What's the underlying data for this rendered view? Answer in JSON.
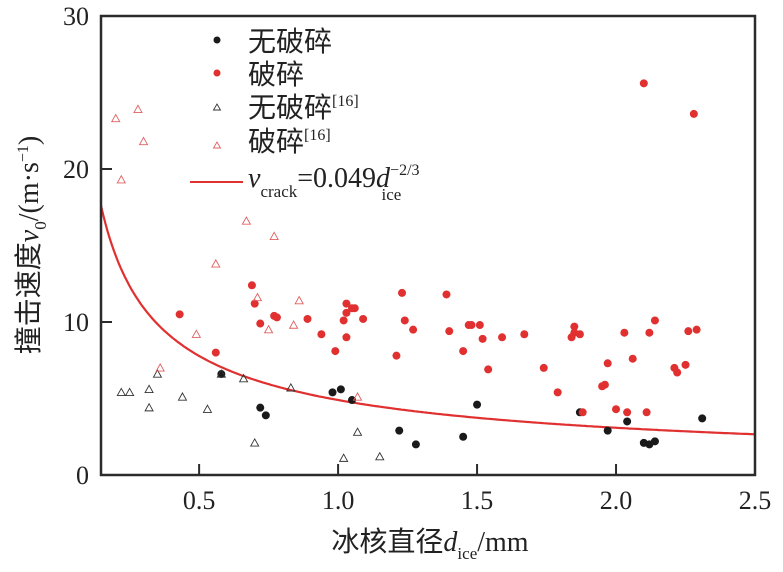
{
  "chart_data": {
    "type": "scatter",
    "title": "",
    "xlabel": {
      "main": "冰核直径",
      "var": "d",
      "sub": "ice",
      "unit": "/mm"
    },
    "ylabel": {
      "main": "撞击速度",
      "var": "v",
      "sub": "0",
      "unit": "/(m·s",
      "exp": "−1",
      "close": ")"
    },
    "xlim": [
      0.147,
      2.5
    ],
    "ylim": [
      0,
      30
    ],
    "xticks": [
      "0.5",
      "1.0",
      "1.5",
      "2.0",
      "2.5"
    ],
    "xtick_values": [
      0.5,
      1.0,
      1.5,
      2.0,
      2.5
    ],
    "yticks": [
      "0",
      "10",
      "20",
      "30"
    ],
    "ytick_values": [
      0,
      10,
      20,
      30
    ],
    "grid": false,
    "legend_position": "top-center",
    "legend": [
      {
        "label": "无破碎",
        "sup": "",
        "marker": "filled-circle",
        "color": "#1a1a1a"
      },
      {
        "label": "破碎",
        "sup": "",
        "marker": "filled-circle",
        "color": "#e03030"
      },
      {
        "label": "无破碎",
        "sup": "[16]",
        "marker": "open-triangle",
        "color": "#333333"
      },
      {
        "label": "破碎",
        "sup": "[16]",
        "marker": "open-triangle",
        "color": "#e06060"
      },
      {
        "label_var": "v",
        "label_sub": "crack",
        "label_eq": "=0.049",
        "label_var2": "d",
        "label_exp": "−2/3",
        "label_sub2": "ice",
        "marker": "line",
        "color": "#e03030"
      }
    ],
    "curve": {
      "name": "v_crack = 0.049 d_ice^(-2/3)",
      "coef": 0.049,
      "exponent": -0.6667,
      "x_unit_scale": 0.001,
      "color": "#e03030"
    },
    "series": [
      {
        "name": "无破碎",
        "marker": "filled-circle",
        "color": "#1a1a1a",
        "points": [
          [
            0.58,
            6.6
          ],
          [
            0.72,
            4.4
          ],
          [
            0.74,
            3.9
          ],
          [
            0.98,
            5.4
          ],
          [
            1.01,
            5.6
          ],
          [
            1.05,
            4.9
          ],
          [
            1.22,
            2.9
          ],
          [
            1.28,
            2.0
          ],
          [
            1.45,
            2.5
          ],
          [
            1.5,
            4.6
          ],
          [
            1.87,
            4.1
          ],
          [
            1.97,
            2.9
          ],
          [
            2.04,
            3.5
          ],
          [
            2.1,
            2.1
          ],
          [
            2.12,
            2.0
          ],
          [
            2.14,
            2.2
          ],
          [
            2.31,
            3.7
          ]
        ]
      },
      {
        "name": "破碎",
        "marker": "filled-circle",
        "color": "#e03030",
        "points": [
          [
            0.43,
            10.5
          ],
          [
            0.56,
            8.0
          ],
          [
            0.69,
            12.4
          ],
          [
            0.7,
            11.2
          ],
          [
            0.72,
            9.9
          ],
          [
            0.77,
            10.4
          ],
          [
            0.78,
            10.3
          ],
          [
            0.89,
            10.2
          ],
          [
            0.94,
            9.2
          ],
          [
            0.99,
            8.1
          ],
          [
            1.02,
            10.1
          ],
          [
            1.03,
            10.6
          ],
          [
            1.03,
            9.0
          ],
          [
            1.03,
            11.2
          ],
          [
            1.05,
            10.9
          ],
          [
            1.06,
            10.9
          ],
          [
            1.09,
            10.2
          ],
          [
            1.21,
            7.8
          ],
          [
            1.23,
            11.9
          ],
          [
            1.24,
            10.1
          ],
          [
            1.27,
            9.5
          ],
          [
            1.39,
            11.8
          ],
          [
            1.4,
            9.4
          ],
          [
            1.45,
            8.1
          ],
          [
            1.47,
            9.8
          ],
          [
            1.48,
            9.8
          ],
          [
            1.51,
            9.8
          ],
          [
            1.52,
            8.9
          ],
          [
            1.54,
            6.9
          ],
          [
            1.59,
            9.0
          ],
          [
            1.67,
            9.2
          ],
          [
            1.74,
            7.0
          ],
          [
            1.79,
            5.4
          ],
          [
            1.84,
            9.0
          ],
          [
            1.85,
            9.7
          ],
          [
            1.85,
            9.3
          ],
          [
            1.87,
            9.2
          ],
          [
            1.88,
            4.1
          ],
          [
            1.95,
            5.8
          ],
          [
            1.96,
            5.9
          ],
          [
            1.97,
            7.3
          ],
          [
            2.0,
            4.3
          ],
          [
            2.03,
            9.3
          ],
          [
            2.04,
            4.1
          ],
          [
            2.06,
            7.6
          ],
          [
            2.1,
            25.6
          ],
          [
            2.11,
            4.1
          ],
          [
            2.12,
            9.3
          ],
          [
            2.14,
            10.1
          ],
          [
            2.21,
            7.0
          ],
          [
            2.22,
            6.7
          ],
          [
            2.25,
            7.2
          ],
          [
            2.26,
            9.4
          ],
          [
            2.28,
            23.6
          ],
          [
            2.29,
            9.5
          ]
        ]
      },
      {
        "name": "无破碎[16]",
        "marker": "open-triangle",
        "color": "#333333",
        "points": [
          [
            0.22,
            5.4
          ],
          [
            0.25,
            5.4
          ],
          [
            0.32,
            5.6
          ],
          [
            0.32,
            4.4
          ],
          [
            0.35,
            6.6
          ],
          [
            0.44,
            5.1
          ],
          [
            0.53,
            4.3
          ],
          [
            0.58,
            6.6
          ],
          [
            0.66,
            6.3
          ],
          [
            0.7,
            2.1
          ],
          [
            0.83,
            5.7
          ],
          [
            1.02,
            1.1
          ],
          [
            1.07,
            2.8
          ],
          [
            1.15,
            1.2
          ]
        ]
      },
      {
        "name": "破碎[16]",
        "marker": "open-triangle",
        "color": "#e06060",
        "points": [
          [
            0.2,
            23.3
          ],
          [
            0.22,
            19.3
          ],
          [
            0.28,
            23.9
          ],
          [
            0.3,
            21.8
          ],
          [
            0.36,
            7.0
          ],
          [
            0.49,
            9.2
          ],
          [
            0.56,
            13.8
          ],
          [
            0.67,
            16.6
          ],
          [
            0.71,
            11.6
          ],
          [
            0.75,
            9.5
          ],
          [
            0.77,
            15.6
          ],
          [
            0.84,
            9.8
          ],
          [
            0.86,
            11.4
          ],
          [
            1.07,
            5.1
          ]
        ]
      }
    ]
  }
}
